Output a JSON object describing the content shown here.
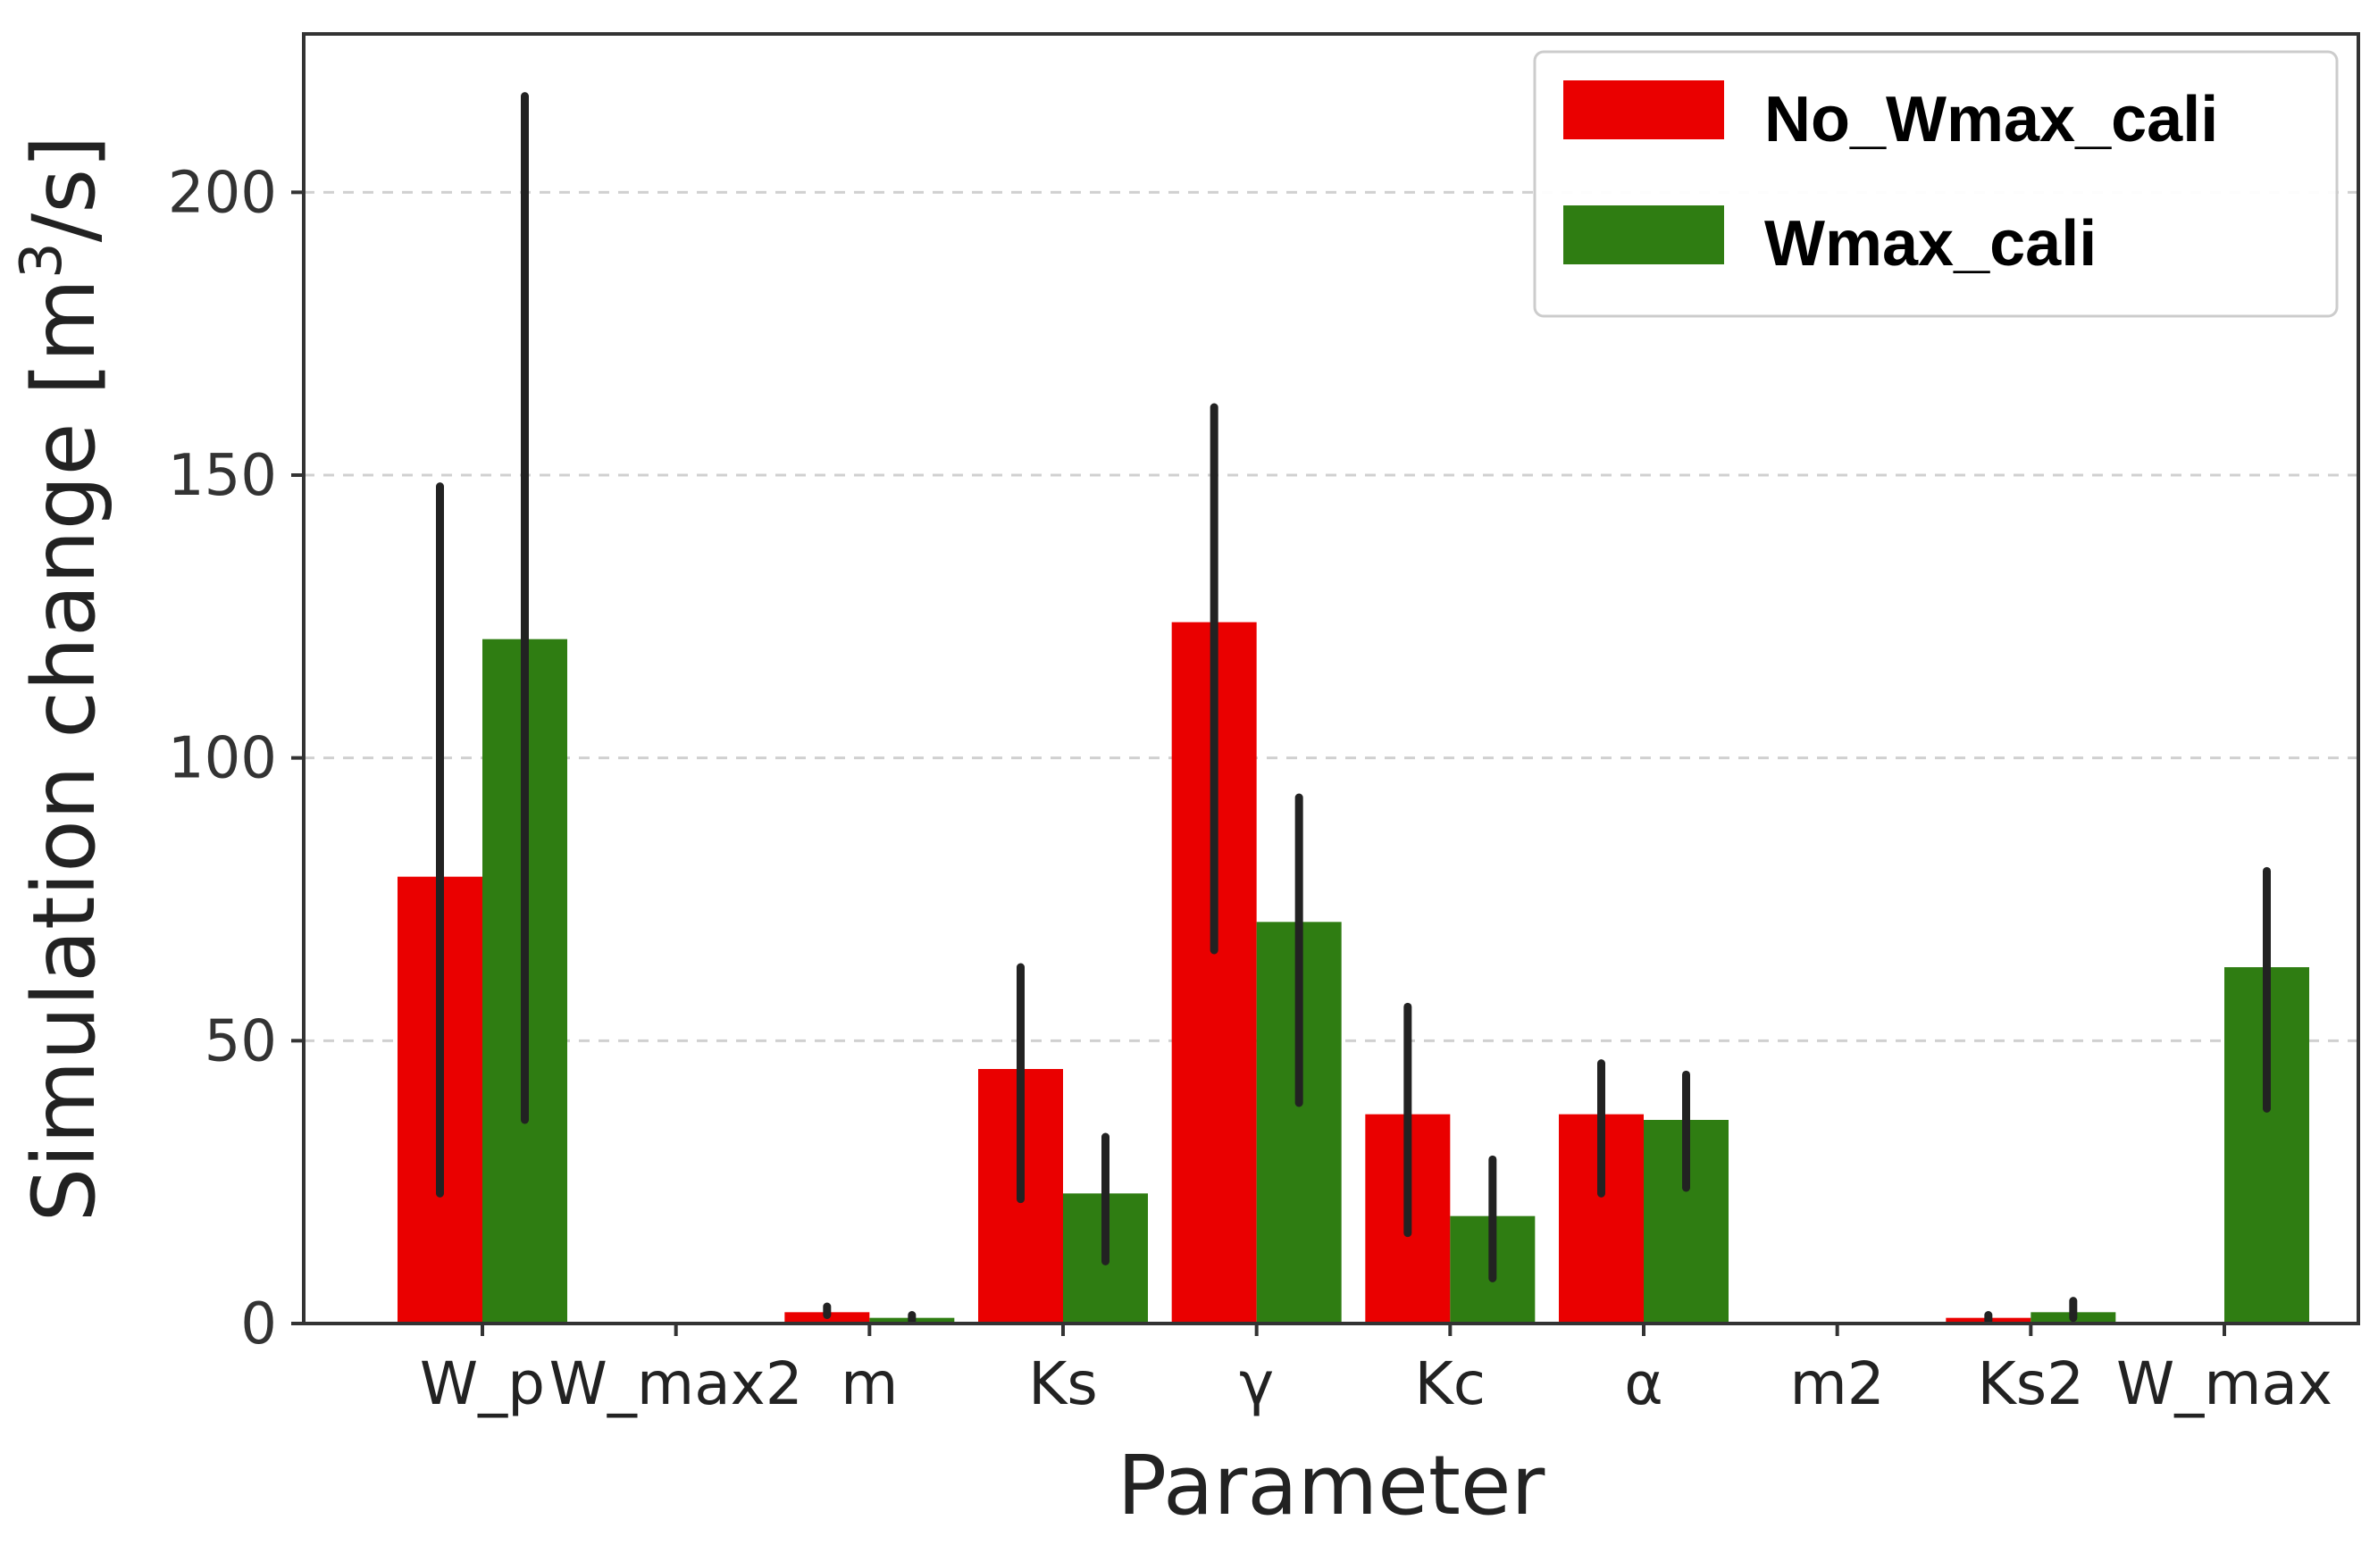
{
  "chart_data": {
    "type": "bar",
    "xlabel": "Parameter",
    "ylabel": "Simulation change [m",
    "ylabel_superscript": "3",
    "ylabel_suffix": "/s]",
    "categories": [
      "W_p",
      "W_max2",
      "m",
      "Ks",
      "γ",
      "Kc",
      "α",
      "m2",
      "Ks2",
      "W_max"
    ],
    "series": [
      {
        "name": "No_Wmax_cali",
        "color": "#ea0000",
        "values": [
          79,
          0,
          2,
          45,
          124,
          37,
          37,
          0,
          1,
          0
        ],
        "errors": [
          [
            23,
            148
          ],
          null,
          [
            1.5,
            3
          ],
          [
            22,
            63
          ],
          [
            66,
            162
          ],
          [
            16,
            56
          ],
          [
            23,
            46
          ],
          null,
          [
            0.5,
            1.5
          ],
          null
        ]
      },
      {
        "name": "Wmax_cali",
        "color": "#2f7d12",
        "values": [
          121,
          0,
          1,
          23,
          71,
          19,
          36,
          0,
          2,
          63
        ],
        "errors": [
          [
            36,
            217
          ],
          null,
          [
            0.5,
            1.5
          ],
          [
            11,
            33
          ],
          [
            39,
            93
          ],
          [
            8,
            29
          ],
          [
            24,
            44
          ],
          null,
          [
            1,
            4
          ],
          [
            38,
            80
          ]
        ]
      }
    ],
    "ylim": [
      0,
      228
    ],
    "yticks": [
      0,
      50,
      100,
      150,
      200
    ],
    "grid": "horizontal dashed",
    "legend_position": "top-right"
  }
}
